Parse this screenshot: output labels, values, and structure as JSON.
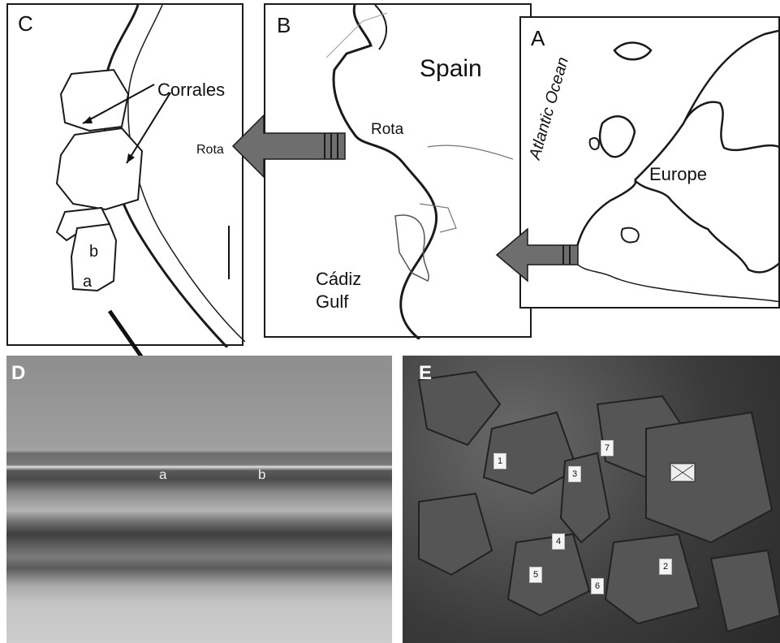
{
  "panels": {
    "a": {
      "label": "A",
      "ocean": "Atlantic Ocean",
      "region": "Europe"
    },
    "b": {
      "label": "B",
      "country": "Spain",
      "town": "Rota",
      "gulf_line1": "Cádiz",
      "gulf_line2": "Gulf"
    },
    "c": {
      "label": "C",
      "feature": "Corrales",
      "town": "Rota",
      "sub_a": "a",
      "sub_b": "b"
    },
    "d": {
      "label": "D",
      "mark_a": "a",
      "mark_b": "b"
    },
    "e": {
      "label": "E",
      "tags": [
        "1",
        "7",
        "3",
        "4",
        "5",
        "6",
        "2"
      ]
    }
  },
  "colors": {
    "line": "#1a1a1a",
    "arrow_fill": "#6e6e6e",
    "photo_dark": "#3a3a3a"
  }
}
